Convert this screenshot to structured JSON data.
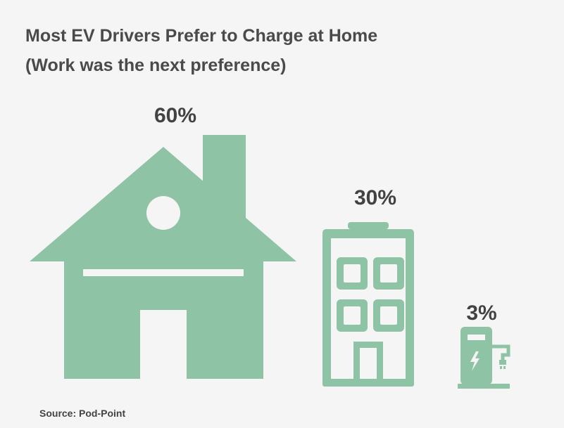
{
  "chart_data": {
    "type": "pictograph",
    "title": "Most EV Drivers Prefer to Charge at Home",
    "subtitle": "(Work was the next preference)",
    "categories": [
      "Home",
      "Work",
      "Public charger"
    ],
    "values": [
      60,
      30,
      3
    ],
    "value_labels": [
      "60%",
      "30%",
      "3%"
    ],
    "icons": [
      "house-icon",
      "office-building-icon",
      "charging-station-icon"
    ],
    "color": "#8fc3a5",
    "source": "Source:  Pod-Point"
  }
}
